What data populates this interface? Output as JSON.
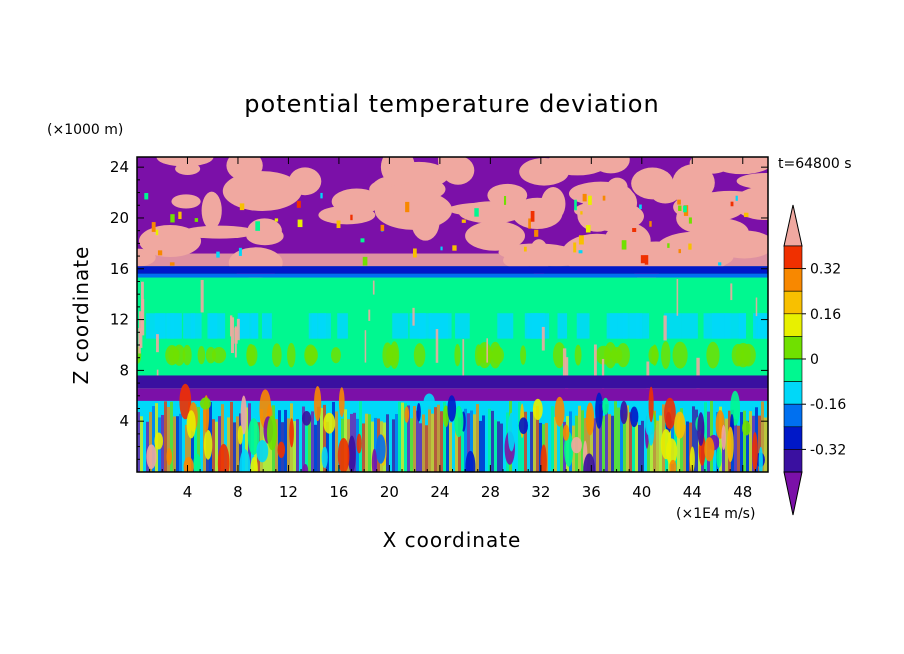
{
  "chart_data": {
    "type": "heatmap",
    "title": "potential temperature deviation",
    "xlabel": "X coordinate",
    "ylabel": "Z coordinate",
    "x_unit": "(×1E4 m/s)",
    "y_unit": "(×1000 m)",
    "time_label": "t=64800 s",
    "xlim": [
      0,
      50
    ],
    "ylim": [
      0,
      24.8
    ],
    "x_ticks": [
      "4",
      "8",
      "12",
      "16",
      "20",
      "24",
      "28",
      "32",
      "36",
      "40",
      "44",
      "48"
    ],
    "y_ticks": [
      "4",
      "8",
      "12",
      "16",
      "20",
      "24"
    ],
    "colorbar": {
      "levels": [
        -0.48,
        -0.4,
        -0.32,
        -0.24,
        -0.16,
        -0.08,
        0,
        0.08,
        0.16,
        0.24,
        0.32,
        0.4,
        0.48
      ],
      "tick_labels": [
        "-0.32",
        "-0.16",
        "0",
        "0.16",
        "0.32"
      ],
      "colors": [
        "#7b10a8",
        "#3a10a0",
        "#0018c8",
        "#0070f0",
        "#00d8f8",
        "#00f890",
        "#70e000",
        "#e8f000",
        "#f8c000",
        "#f88800",
        "#f03000",
        "#f0a8a0"
      ],
      "extend": "both"
    },
    "layers": [
      {
        "z_range": [
          16.2,
          24.8
        ],
        "description_values": "alternating -0.48 and +0.48 patches"
      },
      {
        "z_range": [
          15.8,
          16.2
        ],
        "value": -0.36
      },
      {
        "z_range": [
          7.5,
          15.8
        ],
        "value": -0.05
      },
      {
        "z_range": [
          6.5,
          7.5
        ],
        "value": -0.4
      },
      {
        "z_range": [
          0,
          6.5
        ],
        "value": 0.0
      }
    ]
  }
}
